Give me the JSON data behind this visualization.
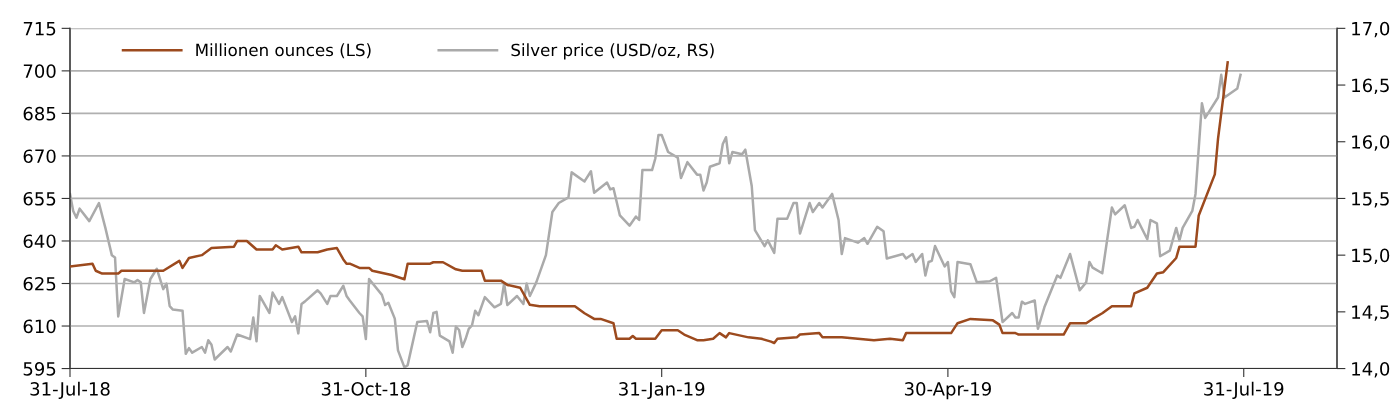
{
  "chart_data": {
    "type": "line",
    "xlim": [
      "2018-07-31",
      "2019-08-29"
    ],
    "xticks": [
      {
        "value": "2018-07-31",
        "label": "31-Jul-18"
      },
      {
        "value": "2018-10-31",
        "label": "31-Oct-18"
      },
      {
        "value": "2019-01-31",
        "label": "31-Jan-19"
      },
      {
        "value": "2019-04-30",
        "label": "30-Apr-19"
      },
      {
        "value": "2019-07-31",
        "label": "31-Jul-19"
      }
    ],
    "ylim": [
      595,
      715
    ],
    "yticks": [
      595,
      610,
      625,
      640,
      655,
      670,
      685,
      700,
      715
    ],
    "y2lim": [
      14.0,
      17.0
    ],
    "y2ticks": [
      {
        "value": 14.0,
        "label": "14,0"
      },
      {
        "value": 14.5,
        "label": "14,5"
      },
      {
        "value": 15.0,
        "label": "15,0"
      },
      {
        "value": 15.5,
        "label": "15,5"
      },
      {
        "value": 16.0,
        "label": "16,0"
      },
      {
        "value": 16.5,
        "label": "16,5"
      },
      {
        "value": 17.0,
        "label": "17,0"
      }
    ],
    "grid": "y",
    "legend": "top left",
    "line_style": "solid",
    "marker": "none",
    "series": [
      {
        "name": "Millionen ounces (LS)",
        "color": "#9c4a1e",
        "axis": "y",
        "x": [
          "2018-07-31",
          "2018-08-07",
          "2018-08-08",
          "2018-08-10",
          "2018-08-15",
          "2018-08-16",
          "2018-08-29",
          "2018-09-03",
          "2018-09-04",
          "2018-09-06",
          "2018-09-10",
          "2018-09-13",
          "2018-09-20",
          "2018-09-21",
          "2018-09-24",
          "2018-09-27",
          "2018-10-02",
          "2018-10-03",
          "2018-10-05",
          "2018-10-10",
          "2018-10-11",
          "2018-10-16",
          "2018-10-19",
          "2018-10-22",
          "2018-10-24",
          "2018-10-25",
          "2018-10-26",
          "2018-10-29",
          "2018-11-01",
          "2018-11-02",
          "2018-11-08",
          "2018-11-12",
          "2018-11-13",
          "2018-11-20",
          "2018-11-21",
          "2018-11-24",
          "2018-11-28",
          "2018-11-30",
          "2018-12-06",
          "2018-12-07",
          "2018-12-12",
          "2018-12-14",
          "2018-12-18",
          "2018-12-21",
          "2018-12-24",
          "2019-01-04",
          "2019-01-07",
          "2019-01-10",
          "2019-01-12",
          "2019-01-16",
          "2019-01-17",
          "2019-01-21",
          "2019-01-22",
          "2019-01-23",
          "2019-01-29",
          "2019-01-31",
          "2019-02-05",
          "2019-02-07",
          "2019-02-11",
          "2019-02-13",
          "2019-02-16",
          "2019-02-18",
          "2019-02-20",
          "2019-02-21",
          "2019-02-27",
          "2019-03-03",
          "2019-03-06",
          "2019-03-07",
          "2019-03-08",
          "2019-03-14",
          "2019-03-15",
          "2019-03-21",
          "2019-03-22",
          "2019-03-28",
          "2019-04-07",
          "2019-04-12",
          "2019-04-16",
          "2019-04-17",
          "2019-04-25",
          "2019-05-01",
          "2019-05-03",
          "2019-05-07",
          "2019-05-14",
          "2019-05-16",
          "2019-05-17",
          "2019-05-21",
          "2019-05-22",
          "2019-06-05",
          "2019-06-07",
          "2019-06-12",
          "2019-06-14",
          "2019-06-17",
          "2019-06-20",
          "2019-06-26",
          "2019-06-27",
          "2019-07-01",
          "2019-07-04",
          "2019-07-06",
          "2019-07-10",
          "2019-07-11",
          "2019-07-16",
          "2019-07-17",
          "2019-07-22",
          "2019-07-23",
          "2019-07-26"
        ],
        "values": [
          631,
          632,
          629.5,
          628.5,
          628.5,
          629.5,
          629.5,
          633,
          630.5,
          634,
          635,
          637.5,
          638,
          640,
          640,
          637,
          637,
          638.5,
          637,
          638,
          636,
          636,
          637,
          637.5,
          633.5,
          632,
          632,
          630.5,
          630.5,
          629.5,
          628,
          626.5,
          632,
          632,
          632.5,
          632.5,
          630,
          629.5,
          629.5,
          626,
          626,
          624.5,
          623.5,
          617.5,
          617,
          617,
          614.5,
          612.5,
          612.5,
          611,
          605.5,
          605.5,
          606.5,
          605.5,
          605.5,
          608.5,
          608.5,
          607,
          605,
          605,
          605.5,
          607.5,
          606,
          607.5,
          606,
          605.5,
          604.5,
          604,
          605.5,
          606,
          607,
          607.5,
          606,
          606,
          605,
          605.5,
          605,
          607.5,
          607.5,
          607.5,
          611,
          612.5,
          612,
          610.5,
          607.5,
          607.5,
          607,
          607,
          611,
          611,
          612.5,
          614.5,
          617,
          617,
          621.5,
          623.5,
          628.5,
          629,
          634,
          638,
          638,
          649,
          663.5,
          676,
          703
        ]
      },
      {
        "name": "Silver price (USD/oz, RS)",
        "color": "#aaaaaa",
        "axis": "y2",
        "x": [
          "2018-07-31",
          "2018-08-01",
          "2018-08-02",
          "2018-08-03",
          "2018-08-06",
          "2018-08-09",
          "2018-08-11",
          "2018-08-13",
          "2018-08-14",
          "2018-08-15",
          "2018-08-17",
          "2018-08-20",
          "2018-08-21",
          "2018-08-22",
          "2018-08-23",
          "2018-08-25",
          "2018-08-27",
          "2018-08-29",
          "2018-08-30",
          "2018-08-31",
          "2018-09-01",
          "2018-09-04",
          "2018-09-05",
          "2018-09-06",
          "2018-09-07",
          "2018-09-10",
          "2018-09-11",
          "2018-09-12",
          "2018-09-13",
          "2018-09-14",
          "2018-09-18",
          "2018-09-19",
          "2018-09-21",
          "2018-09-25",
          "2018-09-26",
          "2018-09-27",
          "2018-09-28",
          "2018-10-01",
          "2018-10-02",
          "2018-10-04",
          "2018-10-05",
          "2018-10-08",
          "2018-10-09",
          "2018-10-10",
          "2018-10-11",
          "2018-10-12",
          "2018-10-16",
          "2018-10-17",
          "2018-10-19",
          "2018-10-20",
          "2018-10-22",
          "2018-10-24",
          "2018-10-25",
          "2018-10-26",
          "2018-10-29",
          "2018-10-30",
          "2018-10-31",
          "2018-11-01",
          "2018-11-05",
          "2018-11-06",
          "2018-11-07",
          "2018-11-09",
          "2018-11-10",
          "2018-11-12",
          "2018-11-13",
          "2018-11-16",
          "2018-11-19",
          "2018-11-20",
          "2018-11-21",
          "2018-11-22",
          "2018-11-23",
          "2018-11-26",
          "2018-11-27",
          "2018-11-28",
          "2018-11-29",
          "2018-11-30",
          "2018-12-01",
          "2018-12-02",
          "2018-12-03",
          "2018-12-04",
          "2018-12-05",
          "2018-12-07",
          "2018-12-10",
          "2018-12-12",
          "2018-12-13",
          "2018-12-14",
          "2018-12-17",
          "2018-12-19",
          "2018-12-20",
          "2018-12-21",
          "2018-12-23",
          "2018-12-26",
          "2018-12-28",
          "2018-12-30",
          "2019-01-02",
          "2019-01-03",
          "2019-01-07",
          "2019-01-09",
          "2019-01-10",
          "2019-01-14",
          "2019-01-15",
          "2019-01-16",
          "2019-01-18",
          "2019-01-21",
          "2019-01-23",
          "2019-01-24",
          "2019-01-25",
          "2019-01-28",
          "2019-01-29",
          "2019-01-30",
          "2019-01-31",
          "2019-02-02",
          "2019-02-05",
          "2019-02-06",
          "2019-02-08",
          "2019-02-11",
          "2019-02-12",
          "2019-02-13",
          "2019-02-14",
          "2019-02-15",
          "2019-02-18",
          "2019-02-19",
          "2019-02-20",
          "2019-02-21",
          "2019-02-22",
          "2019-02-25",
          "2019-02-26",
          "2019-02-28",
          "2019-03-01",
          "2019-03-04",
          "2019-03-05",
          "2019-03-07",
          "2019-03-08",
          "2019-03-11",
          "2019-03-13",
          "2019-03-14",
          "2019-03-15",
          "2019-03-16",
          "2019-03-18",
          "2019-03-19",
          "2019-03-21",
          "2019-03-22",
          "2019-03-25",
          "2019-03-27",
          "2019-03-28",
          "2019-03-29",
          "2019-04-02",
          "2019-04-04",
          "2019-04-05",
          "2019-04-08",
          "2019-04-10",
          "2019-04-11",
          "2019-04-16",
          "2019-04-17",
          "2019-04-19",
          "2019-04-20",
          "2019-04-22",
          "2019-04-23",
          "2019-04-24",
          "2019-04-25",
          "2019-04-26",
          "2019-04-29",
          "2019-04-30",
          "2019-05-01",
          "2019-05-02",
          "2019-05-03",
          "2019-05-07",
          "2019-05-09",
          "2019-05-13",
          "2019-05-15",
          "2019-05-17",
          "2019-05-20",
          "2019-05-21",
          "2019-05-22",
          "2019-05-23",
          "2019-05-24",
          "2019-05-27",
          "2019-05-28",
          "2019-05-30",
          "2019-06-03",
          "2019-06-04",
          "2019-06-07",
          "2019-06-10",
          "2019-06-12",
          "2019-06-13",
          "2019-06-14",
          "2019-06-17",
          "2019-06-20",
          "2019-06-21",
          "2019-06-24",
          "2019-06-26",
          "2019-06-27",
          "2019-06-28",
          "2019-07-01",
          "2019-07-02",
          "2019-07-04",
          "2019-07-05",
          "2019-07-08",
          "2019-07-10",
          "2019-07-11",
          "2019-07-12",
          "2019-07-15",
          "2019-07-16",
          "2019-07-18",
          "2019-07-19",
          "2019-07-23",
          "2019-07-24",
          "2019-07-25",
          "2019-07-29",
          "2019-07-30"
        ],
        "values": [
          15.54,
          15.39,
          15.33,
          15.41,
          15.3,
          15.46,
          15.24,
          15.0,
          14.98,
          14.46,
          14.79,
          14.76,
          14.78,
          14.76,
          14.49,
          14.79,
          14.88,
          14.7,
          14.75,
          14.55,
          14.52,
          14.51,
          14.13,
          14.18,
          14.14,
          14.19,
          14.14,
          14.25,
          14.21,
          14.08,
          14.19,
          14.15,
          14.3,
          14.26,
          14.45,
          14.24,
          14.64,
          14.49,
          14.67,
          14.57,
          14.63,
          14.41,
          14.46,
          14.31,
          14.57,
          14.59,
          14.69,
          14.66,
          14.57,
          14.64,
          14.64,
          14.73,
          14.64,
          14.6,
          14.49,
          14.46,
          14.26,
          14.79,
          14.65,
          14.56,
          14.58,
          14.44,
          14.16,
          14.01,
          14.03,
          14.41,
          14.42,
          14.32,
          14.49,
          14.5,
          14.29,
          14.24,
          14.14,
          14.37,
          14.34,
          14.19,
          14.26,
          14.35,
          14.38,
          14.51,
          14.47,
          14.63,
          14.54,
          14.57,
          14.75,
          14.56,
          14.64,
          14.57,
          14.75,
          14.64,
          14.76,
          15.0,
          15.38,
          15.46,
          15.51,
          15.73,
          15.65,
          15.74,
          15.55,
          15.64,
          15.58,
          15.59,
          15.35,
          15.26,
          15.34,
          15.31,
          15.75,
          15.75,
          15.85,
          16.06,
          16.06,
          15.91,
          15.86,
          15.68,
          15.82,
          15.71,
          15.71,
          15.57,
          15.64,
          15.78,
          15.81,
          15.98,
          16.04,
          15.81,
          15.91,
          15.89,
          15.93,
          15.61,
          15.22,
          15.08,
          15.13,
          15.02,
          15.32,
          15.32,
          15.46,
          15.46,
          15.19,
          15.28,
          15.46,
          15.38,
          15.46,
          15.42,
          15.54,
          15.31,
          15.01,
          15.15,
          15.11,
          15.15,
          15.1,
          15.25,
          15.21,
          14.97,
          15.01,
          14.97,
          15.01,
          14.94,
          15.01,
          14.82,
          14.94,
          14.95,
          15.08,
          14.9,
          14.94,
          14.68,
          14.63,
          14.94,
          14.92,
          14.76,
          14.77,
          14.8,
          14.41,
          14.49,
          14.45,
          14.45,
          14.59,
          14.57,
          14.6,
          14.35,
          14.54,
          14.82,
          14.8,
          15.01,
          14.69,
          14.76,
          14.94,
          14.89,
          14.84,
          15.42,
          15.36,
          15.44,
          15.24,
          15.25,
          15.31,
          15.14,
          15.31,
          15.28,
          14.99,
          15.04,
          15.24,
          15.13,
          15.24,
          15.39,
          15.54,
          16.34,
          16.21,
          16.39,
          16.59,
          16.39,
          16.47,
          16.59
        ]
      }
    ]
  }
}
